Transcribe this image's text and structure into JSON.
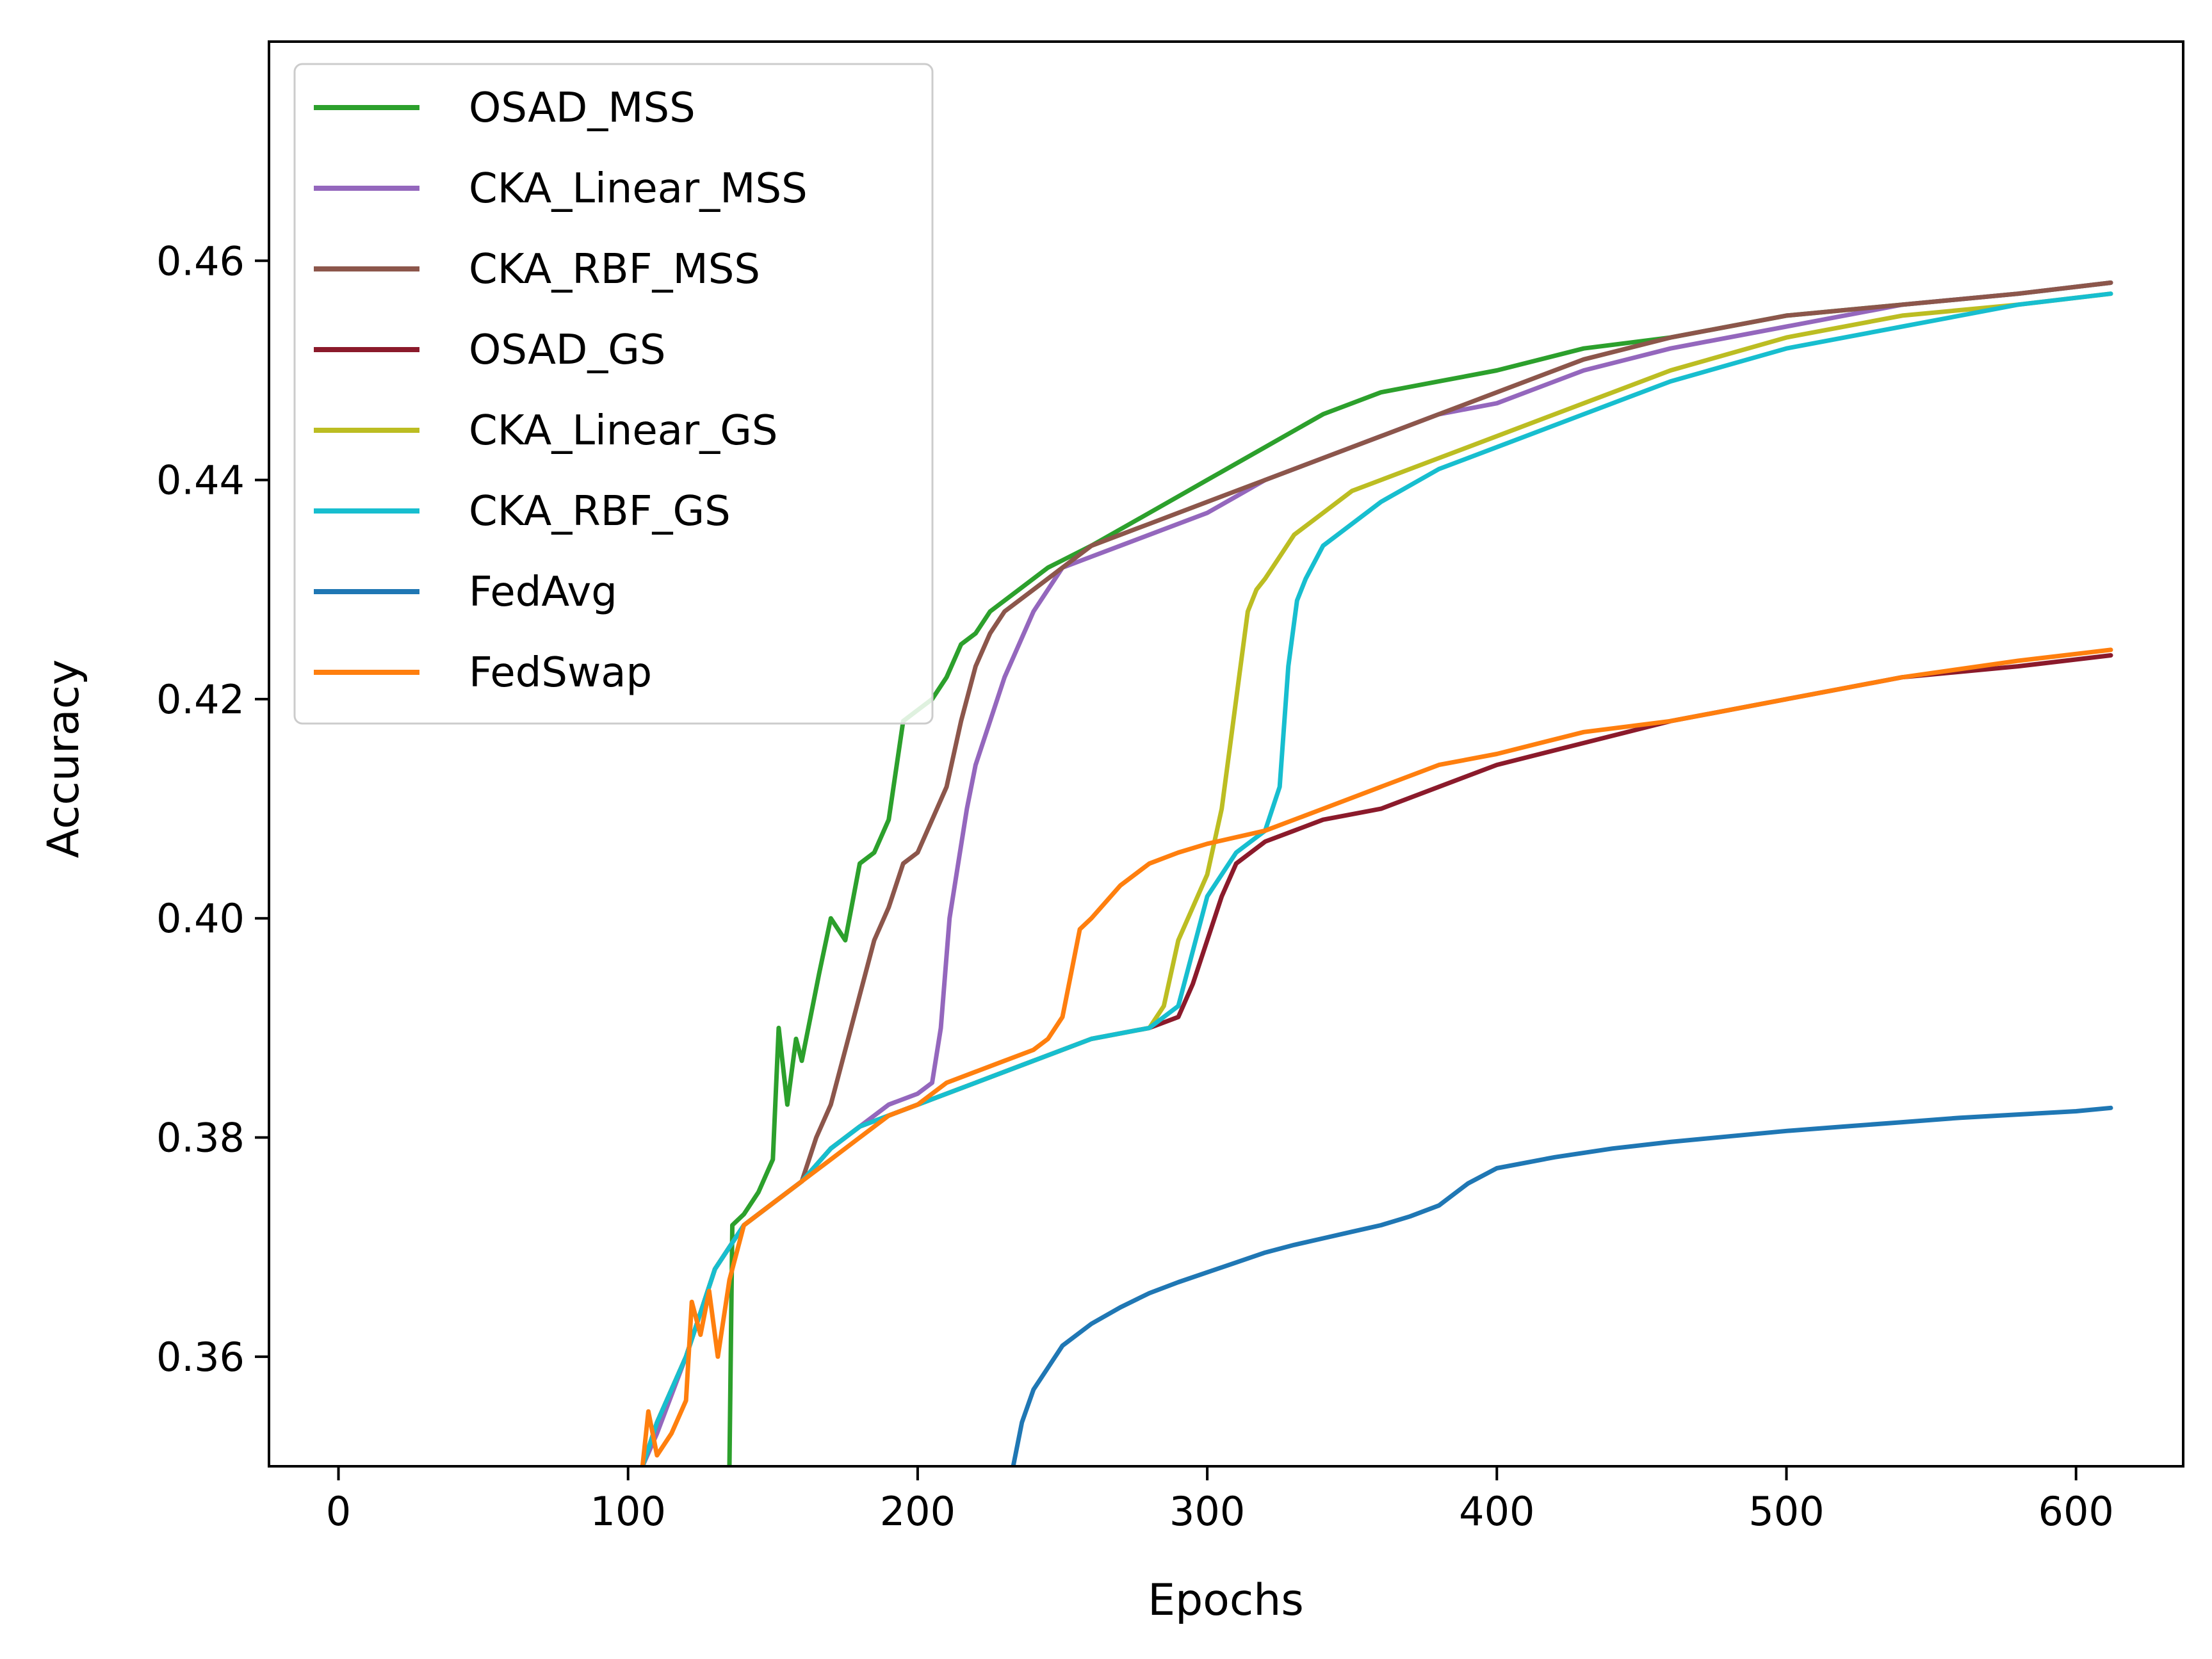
{
  "chart_data": {
    "type": "line",
    "xlabel": "Epochs",
    "ylabel": "Accuracy",
    "xlim": [
      -24,
      637
    ],
    "ylim": [
      0.35,
      0.48
    ],
    "xticks": [
      0,
      100,
      200,
      300,
      400,
      500,
      600
    ],
    "yticks": [
      0.36,
      0.38,
      0.4,
      0.42,
      0.44,
      0.46
    ],
    "xtick_labels": [
      "0",
      "100",
      "200",
      "300",
      "400",
      "500",
      "600"
    ],
    "ytick_labels": [
      "0.36",
      "0.38",
      "0.40",
      "0.42",
      "0.44",
      "0.46"
    ],
    "grid": false,
    "legend_position": "upper-left",
    "series": [
      {
        "name": "OSAD_MSS",
        "color": "#2ca02c",
        "x": [
          135,
          136,
          140,
          145,
          150,
          152,
          155,
          158,
          160,
          163,
          166,
          170,
          175,
          180,
          185,
          190,
          195,
          200,
          205,
          210,
          215,
          220,
          225,
          235,
          245,
          260,
          280,
          300,
          320,
          340,
          360,
          380,
          400,
          430,
          460,
          500,
          540,
          580,
          612
        ],
        "y": [
          0.35,
          0.372,
          0.373,
          0.375,
          0.378,
          0.39,
          0.383,
          0.389,
          0.387,
          0.391,
          0.395,
          0.4,
          0.398,
          0.405,
          0.406,
          0.409,
          0.418,
          0.419,
          0.42,
          0.422,
          0.425,
          0.426,
          0.428,
          0.43,
          0.432,
          0.434,
          0.437,
          0.44,
          0.443,
          0.446,
          0.448,
          0.449,
          0.45,
          0.452,
          0.453,
          0.455,
          0.456,
          0.457,
          0.458
        ]
      },
      {
        "name": "CKA_Linear_MSS",
        "color": "#9467bd",
        "x": [
          105,
          110,
          120,
          130,
          140,
          150,
          160,
          170,
          180,
          190,
          200,
          205,
          208,
          211,
          214,
          217,
          220,
          225,
          230,
          235,
          240,
          250,
          260,
          270,
          280,
          300,
          320,
          340,
          360,
          380,
          400,
          430,
          460,
          500,
          540,
          580,
          612
        ],
        "y": [
          0.35,
          0.353,
          0.36,
          0.368,
          0.372,
          0.374,
          0.376,
          0.379,
          0.381,
          0.383,
          0.384,
          0.385,
          0.39,
          0.4,
          0.405,
          0.41,
          0.414,
          0.418,
          0.422,
          0.425,
          0.428,
          0.432,
          0.433,
          0.434,
          0.435,
          0.437,
          0.44,
          0.442,
          0.444,
          0.446,
          0.447,
          0.45,
          0.452,
          0.454,
          0.456,
          0.457,
          0.458
        ]
      },
      {
        "name": "CKA_RBF_MSS",
        "color": "#8c564b",
        "x": [
          105,
          110,
          120,
          130,
          140,
          150,
          160,
          165,
          170,
          175,
          180,
          185,
          190,
          195,
          200,
          205,
          210,
          215,
          220,
          225,
          230,
          240,
          250,
          260,
          270,
          280,
          300,
          320,
          340,
          360,
          380,
          400,
          430,
          460,
          500,
          540,
          580,
          612
        ],
        "y": [
          0.35,
          0.354,
          0.36,
          0.368,
          0.372,
          0.374,
          0.376,
          0.38,
          0.383,
          0.388,
          0.393,
          0.398,
          0.401,
          0.405,
          0.406,
          0.409,
          0.412,
          0.418,
          0.423,
          0.426,
          0.428,
          0.43,
          0.432,
          0.434,
          0.435,
          0.436,
          0.438,
          0.44,
          0.442,
          0.444,
          0.446,
          0.448,
          0.451,
          0.453,
          0.455,
          0.456,
          0.457,
          0.458
        ]
      },
      {
        "name": "OSAD_GS",
        "color": "#8b1a2b",
        "x": [
          105,
          110,
          120,
          130,
          140,
          150,
          160,
          170,
          180,
          190,
          200,
          220,
          240,
          260,
          280,
          290,
          295,
          300,
          305,
          310,
          320,
          330,
          340,
          360,
          380,
          400,
          430,
          460,
          500,
          540,
          580,
          612
        ],
        "y": [
          0.35,
          0.354,
          0.36,
          0.368,
          0.372,
          0.374,
          0.376,
          0.379,
          0.381,
          0.382,
          0.383,
          0.385,
          0.387,
          0.389,
          0.39,
          0.391,
          0.394,
          0.398,
          0.402,
          0.405,
          0.407,
          0.408,
          0.409,
          0.41,
          0.412,
          0.414,
          0.416,
          0.418,
          0.42,
          0.422,
          0.423,
          0.424
        ]
      },
      {
        "name": "CKA_Linear_GS",
        "color": "#bcbd22",
        "x": [
          105,
          110,
          120,
          130,
          140,
          150,
          160,
          170,
          180,
          190,
          200,
          220,
          240,
          260,
          280,
          285,
          290,
          295,
          300,
          305,
          308,
          311,
          314,
          317,
          320,
          325,
          330,
          340,
          350,
          360,
          380,
          400,
          430,
          460,
          500,
          540,
          580,
          612
        ],
        "y": [
          0.35,
          0.354,
          0.36,
          0.368,
          0.372,
          0.374,
          0.376,
          0.379,
          0.381,
          0.382,
          0.383,
          0.385,
          0.387,
          0.389,
          0.39,
          0.392,
          0.398,
          0.401,
          0.404,
          0.41,
          0.416,
          0.422,
          0.428,
          0.43,
          0.431,
          0.433,
          0.435,
          0.437,
          0.439,
          0.44,
          0.442,
          0.444,
          0.447,
          0.45,
          0.453,
          0.455,
          0.456,
          0.457
        ]
      },
      {
        "name": "CKA_RBF_GS",
        "color": "#17becf",
        "x": [
          105,
          110,
          120,
          130,
          140,
          150,
          160,
          170,
          180,
          190,
          200,
          220,
          240,
          260,
          280,
          290,
          300,
          310,
          320,
          325,
          328,
          331,
          334,
          340,
          350,
          360,
          380,
          400,
          430,
          460,
          500,
          540,
          580,
          612
        ],
        "y": [
          0.35,
          0.354,
          0.36,
          0.368,
          0.372,
          0.374,
          0.376,
          0.379,
          0.381,
          0.382,
          0.383,
          0.385,
          0.387,
          0.389,
          0.39,
          0.392,
          0.402,
          0.406,
          0.408,
          0.412,
          0.423,
          0.429,
          0.431,
          0.434,
          0.436,
          0.438,
          0.441,
          0.443,
          0.446,
          0.449,
          0.452,
          0.454,
          0.456,
          0.457
        ]
      },
      {
        "name": "FedAvg",
        "color": "#1f77b4",
        "x": [
          233,
          236,
          240,
          245,
          250,
          260,
          270,
          280,
          290,
          300,
          310,
          320,
          330,
          340,
          350,
          360,
          370,
          380,
          390,
          400,
          420,
          440,
          460,
          480,
          500,
          520,
          540,
          560,
          580,
          600,
          612
        ],
        "y": [
          0.35,
          0.354,
          0.357,
          0.359,
          0.361,
          0.363,
          0.3645,
          0.3658,
          0.3668,
          0.3677,
          0.3686,
          0.3695,
          0.3702,
          0.3708,
          0.3714,
          0.372,
          0.3728,
          0.3738,
          0.3758,
          0.3772,
          0.3782,
          0.379,
          0.3796,
          0.3801,
          0.3806,
          0.381,
          0.3814,
          0.3818,
          0.3821,
          0.3824,
          0.3827
        ]
      },
      {
        "name": "FedSwap",
        "color": "#ff7f0e",
        "x": [
          105,
          107,
          110,
          115,
          120,
          122,
          125,
          128,
          131,
          135,
          140,
          150,
          160,
          170,
          180,
          190,
          200,
          210,
          220,
          230,
          240,
          245,
          250,
          253,
          256,
          260,
          265,
          270,
          280,
          290,
          300,
          320,
          340,
          360,
          380,
          400,
          430,
          460,
          500,
          540,
          580,
          612
        ],
        "y": [
          0.35,
          0.355,
          0.351,
          0.353,
          0.356,
          0.365,
          0.362,
          0.366,
          0.36,
          0.367,
          0.372,
          0.374,
          0.376,
          0.378,
          0.38,
          0.382,
          0.383,
          0.385,
          0.386,
          0.387,
          0.388,
          0.389,
          0.391,
          0.395,
          0.399,
          0.4,
          0.4015,
          0.403,
          0.405,
          0.406,
          0.4068,
          0.408,
          0.41,
          0.412,
          0.414,
          0.415,
          0.417,
          0.418,
          0.42,
          0.422,
          0.4235,
          0.4245
        ]
      }
    ]
  }
}
